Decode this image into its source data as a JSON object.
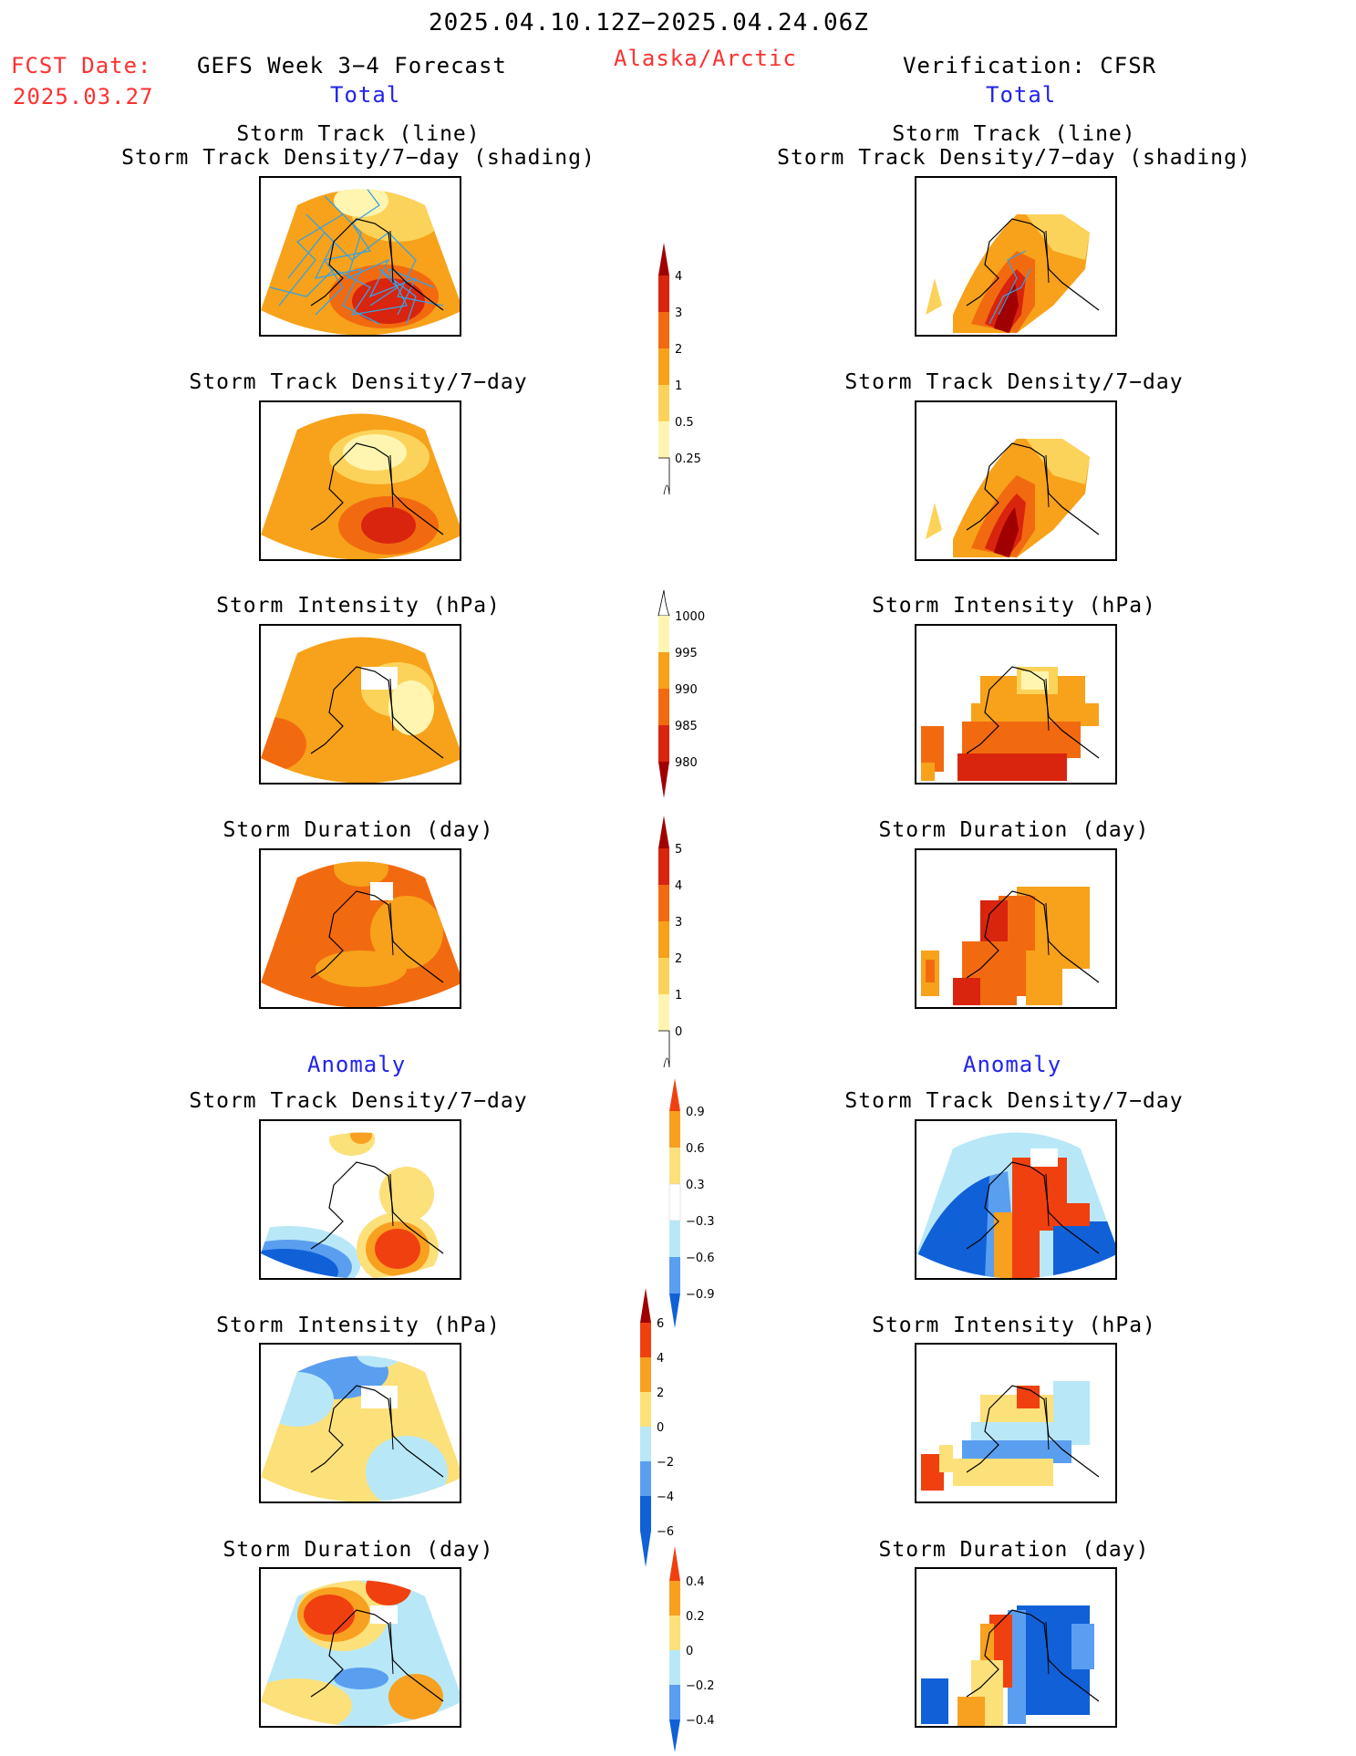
{
  "header": {
    "date_range": "2025.04.10.12Z−2025.04.24.06Z",
    "fcst_label": "FCST Date:",
    "fcst_date": "2025.03.27",
    "forecast_title": "GEFS Week 3−4 Forecast",
    "region": "Alaska/Arctic",
    "verification": "Verification: CFSR",
    "left_total": "Total",
    "right_total": "Total",
    "left_anomaly": "Anomaly",
    "right_anomaly": "Anomaly"
  },
  "panels": {
    "track_title_1": "Storm Track (line)",
    "track_title_2": "Storm Track Density/7−day (shading)",
    "density": "Storm Track Density/7−day",
    "intensity": "Storm Intensity (hPa)",
    "duration": "Storm Duration (day)"
  },
  "colorbars": {
    "density_total": [
      "0.25",
      "0.5",
      "1",
      "2",
      "3",
      "4"
    ],
    "intensity_total": [
      "1000",
      "995",
      "990",
      "985",
      "980"
    ],
    "duration_total": [
      "0",
      "1",
      "2",
      "3",
      "4",
      "5"
    ],
    "density_anom": [
      "0.9",
      "0.6",
      "0.3",
      "−0.3",
      "−0.6",
      "−0.9"
    ],
    "intensity_anom": [
      "6",
      "4",
      "2",
      "0",
      "−2",
      "−4",
      "−6"
    ],
    "duration_anom": [
      "0.4",
      "0.2",
      "0",
      "−0.2",
      "−0.4"
    ]
  },
  "colors": {
    "warm": [
      "#fff5b0",
      "#fcd35a",
      "#f7a21a",
      "#f26a10",
      "#d9240e",
      "#a00000"
    ],
    "diverging": [
      "#1060d8",
      "#5a9ef0",
      "#b8e8f8",
      "#ffffff",
      "#fce07a",
      "#f8a020",
      "#f04010"
    ]
  }
}
